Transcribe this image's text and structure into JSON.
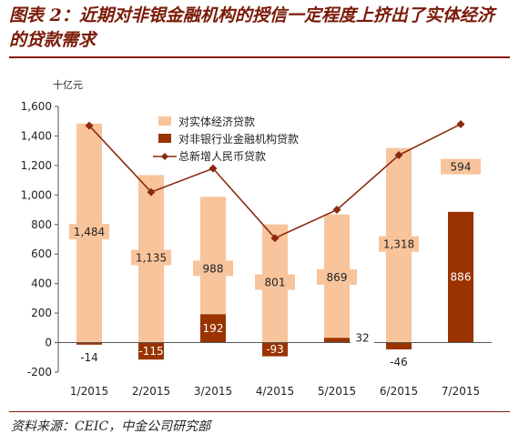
{
  "figure": {
    "title": "图表 2：近期对非银金融机构的授信一定程度上挤出了实体经济的贷款需求",
    "source": "资料来源：CEIC，中金公司研究部"
  },
  "colors": {
    "title": "#7a1a08",
    "rule": "#8b1a0a",
    "real_economy": "#f8c49c",
    "non_bank": "#9a3300",
    "line": "#8b2a10"
  },
  "chart_data": {
    "type": "bar",
    "stacked": true,
    "unit_label": "十亿元",
    "categories": [
      "1/2015",
      "2/2015",
      "3/2015",
      "4/2015",
      "5/2015",
      "6/2015",
      "7/2015"
    ],
    "ylim": [
      -200,
      1600
    ],
    "yticks": [
      -200,
      0,
      200,
      400,
      600,
      800,
      1000,
      1200,
      1400,
      1600
    ],
    "ytick_labels": [
      "-200",
      "0",
      "200",
      "400",
      "600",
      "800",
      "1,000",
      "1,200",
      "1,400",
      "1,600"
    ],
    "grid": false,
    "legend_position": "top-center",
    "series": [
      {
        "key": "real_economy",
        "name": "对实体经济贷款",
        "kind": "bar",
        "values": [
          1484,
          1135,
          988,
          801,
          869,
          1318,
          594
        ],
        "labels": [
          "1,484",
          "1,135",
          "988",
          "801",
          "869",
          "1,318",
          "594"
        ]
      },
      {
        "key": "non_bank",
        "name": "对非银行业金融机构贷款",
        "kind": "bar",
        "values": [
          -14,
          -115,
          192,
          -93,
          32,
          -46,
          886
        ],
        "labels": [
          "-14",
          "-115",
          "192",
          "-93",
          "32",
          "-46",
          "886"
        ]
      },
      {
        "key": "total",
        "name": "总新增人民币贷款",
        "kind": "line",
        "marker": "diamond",
        "values": [
          1470,
          1020,
          1180,
          708,
          900,
          1270,
          1480
        ]
      }
    ]
  }
}
